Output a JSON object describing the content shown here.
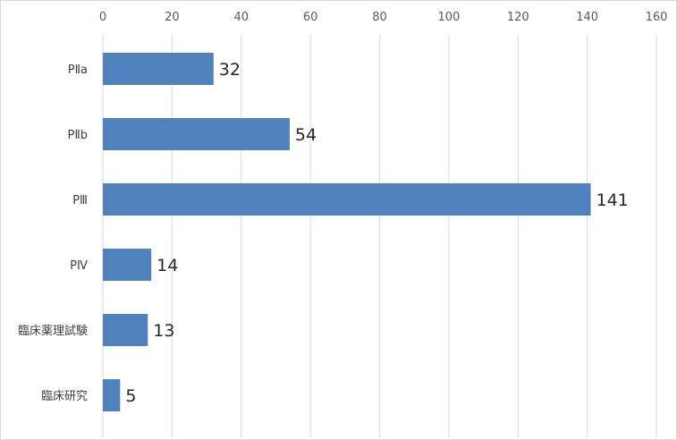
{
  "chart_data": {
    "type": "bar",
    "orientation": "horizontal",
    "title": "",
    "xlabel": "",
    "ylabel": "",
    "categories": [
      "PⅡa",
      "PⅡb",
      "PⅢ",
      "PⅣ",
      "臨床薬理試験",
      "臨床研究"
    ],
    "values": [
      32,
      54,
      141,
      14,
      13,
      5
    ],
    "data_labels": [
      "32",
      "54",
      "141",
      "14",
      "13",
      "5"
    ],
    "xlim": [
      0,
      160
    ],
    "x_ticks": [
      "0",
      "20",
      "40",
      "60",
      "80",
      "100",
      "120",
      "140",
      "160"
    ],
    "x_axis_position": "top",
    "grid": true,
    "legend": "none",
    "bar_color": "#4f81bd",
    "grid_color": "#d9d9d9"
  }
}
